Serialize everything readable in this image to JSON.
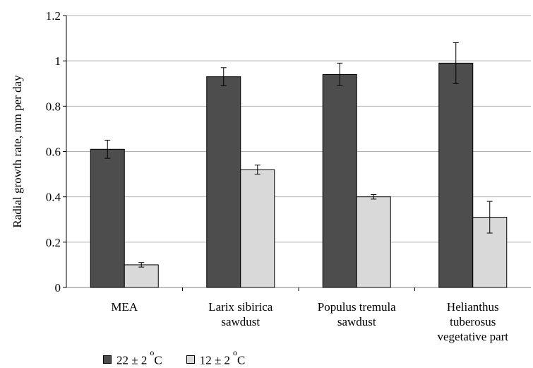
{
  "chart_data": {
    "type": "bar",
    "categories": [
      [
        "MEA"
      ],
      [
        "Larix sibirica",
        "sawdust"
      ],
      [
        "Populus tremula",
        "sawdust"
      ],
      [
        "Helianthus",
        "tuberosus",
        "vegetative part"
      ]
    ],
    "series": [
      {
        "name": "22 ± 2",
        "unit": "C",
        "color": "#4d4d4d",
        "values": [
          0.61,
          0.93,
          0.94,
          0.99
        ],
        "errors": [
          0.04,
          0.04,
          0.05,
          0.09
        ]
      },
      {
        "name": "12 ± 2",
        "unit": "C",
        "color": "#d9d9d9",
        "values": [
          0.1,
          0.52,
          0.4,
          0.31
        ],
        "errors": [
          0.01,
          0.02,
          0.01,
          0.07
        ]
      }
    ],
    "ylabel": "Radial growth rate, mm per day",
    "ylim": [
      0,
      1.2
    ],
    "yticks": [
      "0",
      "0.2",
      "0.4",
      "0.6",
      "0.8",
      "1",
      "1.2"
    ],
    "yticks_values": [
      0,
      0.2,
      0.4,
      0.6,
      0.8,
      1.0,
      1.2
    ],
    "grid": true,
    "legend_position": "bottom-left",
    "degree_symbol": "o"
  }
}
